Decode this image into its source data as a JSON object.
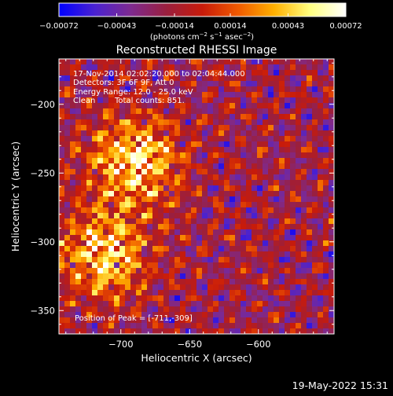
{
  "chart_data": {
    "type": "heatmap",
    "title": "Reconstructed RHESSI Image",
    "xlabel": "Heliocentric X (arcsec)",
    "ylabel": "Heliocentric Y (arcsec)",
    "xlim": [
      -745,
      -545
    ],
    "ylim": [
      -367,
      -167
    ],
    "x_ticks": [
      -700,
      -650,
      -600
    ],
    "x_tick_labels": [
      "−700",
      "−650",
      "−600"
    ],
    "y_ticks": [
      -200,
      -250,
      -300,
      -350
    ],
    "y_tick_labels": [
      "−200",
      "−250",
      "−300",
      "−350"
    ],
    "grid": false,
    "colorbar": {
      "min": -0.00072,
      "max": 0.00072,
      "ticks": [
        -0.00072,
        -0.00043,
        -0.00014,
        0.00014,
        0.00043,
        0.00072
      ],
      "tick_labels": [
        "−0.00072",
        "−0.00043",
        "−0.00014",
        "0.00014",
        "0.00043",
        "0.00072"
      ],
      "units_prefix": "(photons cm",
      "units_exp1": "−2",
      "units_mid1": " s",
      "units_exp2": "−1",
      "units_mid2": " asec",
      "units_exp3": "−2",
      "units_suffix": ")",
      "colormap_stops": [
        "#0000ff",
        "#4a22d0",
        "#7e2a90",
        "#9a1f3e",
        "#c81b0a",
        "#f05a00",
        "#ffb000",
        "#ffff80",
        "#ffffff"
      ]
    },
    "annotations": {
      "time_range": "17-Nov-2014 02:02:20.000 to 02:04:44.000",
      "detectors": "Detectors: 3F 6F 9F, Att 0",
      "energy": "Energy Range: 12.0 - 25.0 keV",
      "clean_label": "Clean",
      "counts": "Total counts: 851.",
      "peak": "Position of Peak = [-711,-309]"
    },
    "peak_position": [
      -711,
      -309
    ],
    "bright_sources": [
      {
        "x": -690,
        "y": -242,
        "strength": 1.0
      },
      {
        "x": -712,
        "y": -309,
        "strength": 0.95
      }
    ]
  },
  "footer": {
    "date_stamp": "19-May-2022 15:31"
  }
}
